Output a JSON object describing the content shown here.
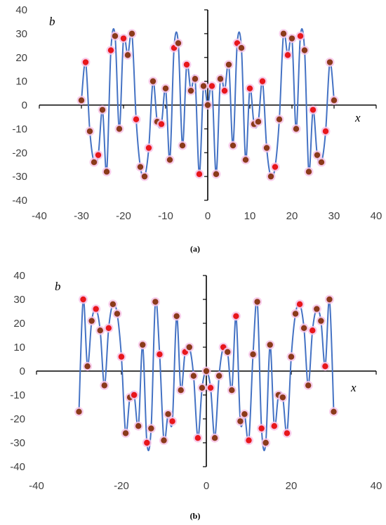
{
  "chart_data": [
    {
      "type": "line",
      "panel_label": "(a)",
      "xlabel": "x",
      "ylabel": "b",
      "xlim": [
        -40,
        40
      ],
      "ylim": [
        -40,
        40
      ],
      "x_ticks": [
        -40,
        -30,
        -20,
        -10,
        0,
        10,
        20,
        30,
        40
      ],
      "y_ticks": [
        -40,
        -30,
        -20,
        -10,
        0,
        10,
        20,
        30,
        40
      ],
      "grid": false,
      "series": [
        {
          "x": [
            -30,
            -29,
            -28,
            -27,
            -26,
            -25,
            -24,
            -23,
            -22,
            -21,
            -20,
            -19,
            -18,
            -17,
            -16,
            -15,
            -14,
            -13,
            -12,
            -11,
            -10,
            -9,
            -8,
            -7,
            -6,
            -5,
            -4,
            -3,
            -2,
            -1,
            0,
            1,
            2,
            3,
            4,
            5,
            6,
            7,
            8,
            9,
            10,
            11,
            12,
            13,
            14,
            15,
            16,
            17,
            18,
            19,
            20,
            21,
            22,
            23,
            24,
            25,
            26,
            27,
            28,
            29,
            30
          ],
          "y": [
            2,
            18,
            -11,
            -24,
            -21,
            -2,
            -28,
            23,
            29,
            -10,
            28,
            21,
            30,
            -6,
            -26,
            -30,
            -18,
            10,
            -7,
            -8,
            7,
            -23,
            24,
            26,
            -17,
            17,
            6,
            11,
            -29,
            8,
            0,
            8,
            -29,
            11,
            6,
            17,
            -17,
            26,
            24,
            -23,
            7,
            -8,
            -7,
            10,
            -18,
            -30,
            -26,
            -6,
            30,
            21,
            28,
            -10,
            29,
            23,
            -28,
            -2,
            -21,
            -24,
            -11,
            18,
            2
          ]
        }
      ]
    },
    {
      "type": "line",
      "panel_label": "(b)",
      "xlabel": "x",
      "ylabel": "b",
      "xlim": [
        -40,
        40
      ],
      "ylim": [
        -40,
        40
      ],
      "x_ticks": [
        -40,
        -20,
        0,
        20,
        40
      ],
      "y_ticks": [
        -40,
        -30,
        -20,
        -10,
        0,
        10,
        20,
        30,
        40
      ],
      "grid": false,
      "series": [
        {
          "x": [
            -30,
            -29,
            -28,
            -27,
            -26,
            -25,
            -24,
            -23,
            -22,
            -21,
            -20,
            -19,
            -18,
            -17,
            -16,
            -15,
            -14,
            -13,
            -12,
            -11,
            -10,
            -9,
            -8,
            -7,
            -6,
            -5,
            -4,
            -3,
            -2,
            -1,
            0,
            1,
            2,
            3,
            4,
            5,
            6,
            7,
            8,
            9,
            10,
            11,
            12,
            13,
            14,
            15,
            16,
            17,
            18,
            19,
            20,
            21,
            22,
            23,
            24,
            25,
            26,
            27,
            28,
            29,
            30
          ],
          "y": [
            -17,
            30,
            2,
            21,
            26,
            17,
            -6,
            18,
            28,
            24,
            6,
            -26,
            -11,
            -10,
            -23,
            11,
            -30,
            -24,
            29,
            7,
            -29,
            -18,
            -21,
            23,
            -8,
            8,
            10,
            -2,
            -28,
            -7,
            0,
            -7,
            -28,
            -2,
            10,
            8,
            -8,
            23,
            -21,
            -18,
            -29,
            7,
            29,
            -24,
            -30,
            11,
            -23,
            -10,
            -11,
            -26,
            6,
            24,
            28,
            18,
            -6,
            17,
            26,
            21,
            2,
            30,
            -17
          ]
        }
      ]
    }
  ],
  "colors": {
    "line": "#4472c4",
    "marker_red": "#e8161b",
    "marker_brown": "#8b3a1a",
    "marker_halo": "#f7c3e6",
    "axis": "#000000",
    "tick_text": "#404040"
  }
}
